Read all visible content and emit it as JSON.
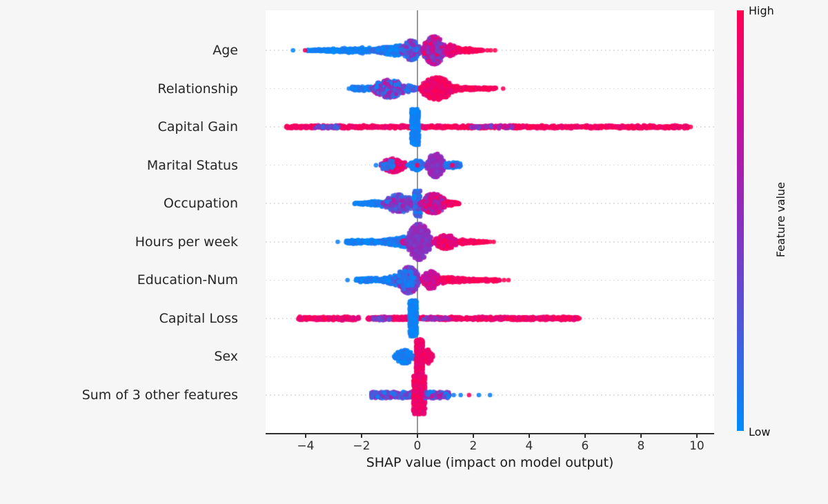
{
  "colors": {
    "figure_bg": "#f6f6f6",
    "plot_bg": "#ffffff",
    "axis": "#2f2f2f",
    "zero_line": "#999999",
    "gridline": "#d9d9d9"
  },
  "chart_data": {
    "type": "scatter",
    "variant": "shap-beeswarm-summary",
    "title": "",
    "xlabel": "SHAP value (impact on model output)",
    "ylabel": "",
    "xlim": [
      -5.43,
      10.62
    ],
    "grid": "dotted horizontal line per feature row",
    "zero_line_x": 0,
    "x_ticks": [
      {
        "value": -4,
        "label": "−4"
      },
      {
        "value": -2,
        "label": "−2"
      },
      {
        "value": 0,
        "label": "0"
      },
      {
        "value": 2,
        "label": "2"
      },
      {
        "value": 4,
        "label": "4"
      },
      {
        "value": 6,
        "label": "6"
      },
      {
        "value": 8,
        "label": "8"
      },
      {
        "value": 10,
        "label": "10"
      }
    ],
    "colormap_stops": [
      [
        0.0,
        "#008bfb"
      ],
      [
        0.25,
        "#4e58d9"
      ],
      [
        0.5,
        "#8b2fbe"
      ],
      [
        0.75,
        "#cb0e9c"
      ],
      [
        1.0,
        "#ff0051"
      ]
    ],
    "colorbar": {
      "label": "Feature value",
      "high_label": "High",
      "low_label": "Low",
      "low_color": "#008bfb",
      "high_color": "#ff0051"
    },
    "point_radius_px": 3.3,
    "segment_format": [
      "x_start",
      "x_end",
      "count",
      "sigma_px",
      "profile",
      "color_t_mean",
      "color_t_spread"
    ],
    "features": [
      {
        "name": "Age",
        "segments": [
          [
            -3.95,
            -1.7,
            300,
            5,
            "taperR",
            0.04,
            0.06
          ],
          [
            -1.7,
            -0.6,
            420,
            9,
            "taperR",
            0.08,
            0.12
          ],
          [
            -0.6,
            0.15,
            520,
            14,
            "lens",
            0.3,
            0.3
          ],
          [
            0.15,
            1.05,
            750,
            20,
            "lens",
            0.65,
            0.35
          ],
          [
            1.05,
            1.65,
            220,
            10,
            "taperL",
            0.9,
            0.12
          ],
          [
            1.65,
            2.35,
            90,
            4,
            "taperL",
            0.97,
            0.04
          ]
        ],
        "dots": [
          [
            -4.45,
            0.02
          ],
          [
            -4.02,
            0.95
          ],
          [
            2.5,
            1
          ],
          [
            2.62,
            1
          ],
          [
            2.78,
            1
          ]
        ]
      },
      {
        "name": "Relationship",
        "segments": [
          [
            -2.35,
            -1.65,
            120,
            3,
            "flat",
            0.08,
            0.1
          ],
          [
            -1.65,
            -0.35,
            560,
            13,
            "lens",
            0.4,
            0.45
          ],
          [
            -0.35,
            0.05,
            130,
            5,
            "taperL",
            0.15,
            0.2
          ],
          [
            0.05,
            1.35,
            700,
            16,
            "lens",
            0.93,
            0.1
          ],
          [
            1.35,
            2.35,
            150,
            4.5,
            "taperL",
            0.96,
            0.05
          ],
          [
            2.35,
            2.85,
            40,
            2,
            "flat",
            0.97,
            0.04
          ]
        ],
        "dots": [
          [
            -2.45,
            0.05
          ],
          [
            3.07,
            0.97
          ]
        ]
      },
      {
        "name": "Capital Gain",
        "segments": [
          [
            -4.7,
            9.7,
            1150,
            2.2,
            "flat",
            0.94,
            0.07
          ],
          [
            -3.7,
            -2.8,
            30,
            2.2,
            "flat",
            0.3,
            0.25
          ],
          [
            1.9,
            3.4,
            40,
            2.2,
            "flat",
            0.55,
            0.3
          ],
          [
            -0.22,
            0.06,
            280,
            26,
            "col",
            0.04,
            0.05
          ]
        ],
        "dots": [
          [
            9.78,
            1
          ]
        ]
      },
      {
        "name": "Marital Status",
        "segments": [
          [
            -1.35,
            -0.35,
            440,
            10,
            "lens",
            0.86,
            0.15
          ],
          [
            -1.3,
            -0.85,
            30,
            7,
            "flat",
            0.15,
            0.12
          ],
          [
            -0.35,
            0.3,
            240,
            7,
            "lens",
            0.12,
            0.15
          ],
          [
            0.3,
            1.0,
            540,
            17,
            "lens",
            0.52,
            0.1
          ],
          [
            1.0,
            1.55,
            90,
            4,
            "flat",
            0.15,
            0.18
          ]
        ],
        "dots": [
          [
            -1.48,
            0.05
          ],
          [
            0.0,
            0.95
          ],
          [
            1.25,
            0.95
          ]
        ]
      },
      {
        "name": "Occupation",
        "segments": [
          [
            -2.25,
            -1.25,
            180,
            4.5,
            "taperR",
            0.06,
            0.08
          ],
          [
            -1.25,
            -0.05,
            540,
            13,
            "lens",
            0.38,
            0.35
          ],
          [
            -0.12,
            0.12,
            100,
            19,
            "col",
            0.18,
            0.2
          ],
          [
            0.05,
            1.1,
            580,
            14,
            "lens",
            0.72,
            0.28
          ],
          [
            1.1,
            1.5,
            80,
            4,
            "taperL",
            0.93,
            0.1
          ]
        ],
        "dots": []
      },
      {
        "name": "Hours per week",
        "segments": [
          [
            -2.55,
            -1.5,
            160,
            3,
            "flat",
            0.05,
            0.07
          ],
          [
            -1.5,
            -0.42,
            430,
            7.5,
            "taperR",
            0.08,
            0.1
          ],
          [
            -0.55,
            -0.15,
            60,
            2.5,
            "flat",
            0.85,
            0.12
          ],
          [
            -0.42,
            0.55,
            720,
            26,
            "lens",
            0.5,
            0.12
          ],
          [
            0.55,
            1.5,
            380,
            10,
            "lens",
            0.88,
            0.12
          ],
          [
            1.5,
            2.5,
            120,
            4,
            "taperL",
            0.96,
            0.05
          ]
        ],
        "dots": [
          [
            -2.85,
            0.04
          ],
          [
            2.6,
            1
          ],
          [
            2.73,
            1
          ]
        ]
      },
      {
        "name": "Education-Num",
        "segments": [
          [
            -2.2,
            -1.4,
            120,
            3,
            "flat",
            0.06,
            0.08
          ],
          [
            -1.4,
            -0.75,
            280,
            7.5,
            "taperR",
            0.1,
            0.12
          ],
          [
            -0.75,
            0.12,
            640,
            19,
            "lens",
            0.45,
            0.2
          ],
          [
            -0.7,
            -0.1,
            45,
            13,
            "flat",
            0.08,
            0.08
          ],
          [
            0.12,
            0.85,
            440,
            12.5,
            "lens",
            0.8,
            0.15
          ],
          [
            0.85,
            2.4,
            320,
            5,
            "taperL",
            0.95,
            0.07
          ],
          [
            2.4,
            2.95,
            45,
            2,
            "flat",
            0.97,
            0.04
          ]
        ],
        "dots": [
          [
            -2.5,
            0.04
          ],
          [
            3.1,
            1
          ],
          [
            3.26,
            1
          ]
        ]
      },
      {
        "name": "Capital Loss",
        "segments": [
          [
            -4.3,
            -2.1,
            230,
            2.6,
            "flat",
            0.91,
            0.09
          ],
          [
            -1.8,
            5.75,
            950,
            2.4,
            "flat",
            0.92,
            0.09
          ],
          [
            -1.6,
            -0.9,
            32,
            2.6,
            "flat",
            0.45,
            0.25
          ],
          [
            0.2,
            1.2,
            32,
            2.4,
            "flat",
            0.5,
            0.25
          ],
          [
            -0.28,
            -0.02,
            260,
            26,
            "col",
            0.04,
            0.05
          ]
        ],
        "dots": [
          [
            5.8,
            1
          ]
        ]
      },
      {
        "name": "Sex",
        "segments": [
          [
            -0.85,
            -0.08,
            400,
            9.5,
            "lens",
            0.05,
            0.07
          ],
          [
            -0.05,
            0.2,
            330,
            25,
            "col",
            0.93,
            0.07
          ],
          [
            0.2,
            0.57,
            170,
            10,
            "lens",
            0.93,
            0.07
          ]
        ],
        "dots": []
      },
      {
        "name": "Sum of 3 other features",
        "segments": [
          [
            -1.65,
            -0.15,
            340,
            4.5,
            "flat",
            0.3,
            0.35
          ],
          [
            -0.15,
            0.28,
            430,
            28,
            "col",
            0.92,
            0.08
          ],
          [
            0.28,
            1.15,
            210,
            4.5,
            "flat",
            0.45,
            0.45
          ]
        ],
        "dots": [
          [
            1.3,
            0.05
          ],
          [
            1.55,
            0.05
          ],
          [
            1.85,
            0.95
          ],
          [
            2.2,
            0.05
          ],
          [
            2.6,
            0.05
          ]
        ]
      }
    ]
  }
}
